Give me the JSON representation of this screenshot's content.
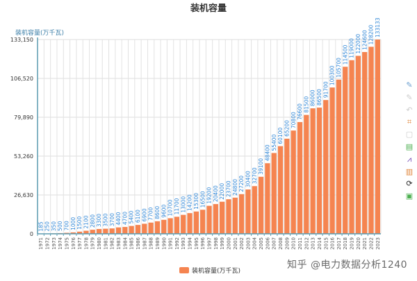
{
  "chart_data": {
    "type": "bar",
    "title": "装机容量",
    "ylabel": "装机容量(万千瓦)",
    "xlabel": "",
    "ylim": [
      0,
      133150
    ],
    "yticks": [
      "0",
      "26,630",
      "53,260",
      "79,890",
      "106,520",
      "133,150"
    ],
    "ytick_values": [
      0,
      26630,
      53260,
      79890,
      106520,
      133150
    ],
    "grid": true,
    "legend_position": "bottom",
    "categories": [
      "1971",
      "1972",
      "1973",
      "1974",
      "1975",
      "1976",
      "1977",
      "1978",
      "1979",
      "1980",
      "1981",
      "1982",
      "1983",
      "1984",
      "1985",
      "1986",
      "1987",
      "1988",
      "1989",
      "1990",
      "1991",
      "1992",
      "1993",
      "1994",
      "1995",
      "1996",
      "1997",
      "1998",
      "1999",
      "2000",
      "2001",
      "2002",
      "2003",
      "2004",
      "2005",
      "2006",
      "2007",
      "2008",
      "2009",
      "2010",
      "2011",
      "2012",
      "2013",
      "2014",
      "2015",
      "2016",
      "2017",
      "2018",
      "2019",
      "2020",
      "2021",
      "2022",
      "2023"
    ],
    "series": [
      {
        "name": "装机容量(万千瓦)",
        "color": "#f58450",
        "label_color": "#2f86d6",
        "values": [
          185,
          250,
          350,
          500,
          700,
          1000,
          1500,
          2100,
          2800,
          3300,
          3500,
          3700,
          4400,
          4700,
          5400,
          6100,
          6900,
          7700,
          8600,
          9600,
          10700,
          11700,
          13000,
          14200,
          15300,
          16500,
          19200,
          20400,
          22000,
          23700,
          24800,
          27200,
          30400,
          32700,
          39100,
          48400,
          55400,
          60100,
          65200,
          70800,
          76600,
          81500,
          86000,
          86500,
          91700,
          100300,
          105700,
          114500,
          119000,
          122000,
          124600,
          128200,
          133133
        ]
      }
    ]
  },
  "toolbox": [
    {
      "icon": "mark-pen-icon",
      "color": "#6a9fd0"
    },
    {
      "icon": "eraser-icon",
      "color": "#cccccc"
    },
    {
      "icon": "undo-mark-icon",
      "color": "#cccccc"
    },
    {
      "icon": "data-zoom-icon",
      "color": "#e0853a"
    },
    {
      "icon": "data-zoom-reset-icon",
      "color": "#cccccc"
    },
    {
      "icon": "data-view-icon",
      "color": "#4caf50"
    },
    {
      "icon": "line-chart-icon",
      "color": "#6a3fb0"
    },
    {
      "icon": "bar-chart-icon",
      "color": "#e0853a"
    },
    {
      "icon": "restore-icon",
      "color": "#222222"
    },
    {
      "icon": "save-image-icon",
      "color": "#4caf50"
    }
  ],
  "legend": {
    "label": "装机容量(万千瓦)"
  },
  "watermark": "知乎 @电力数据分析1240"
}
